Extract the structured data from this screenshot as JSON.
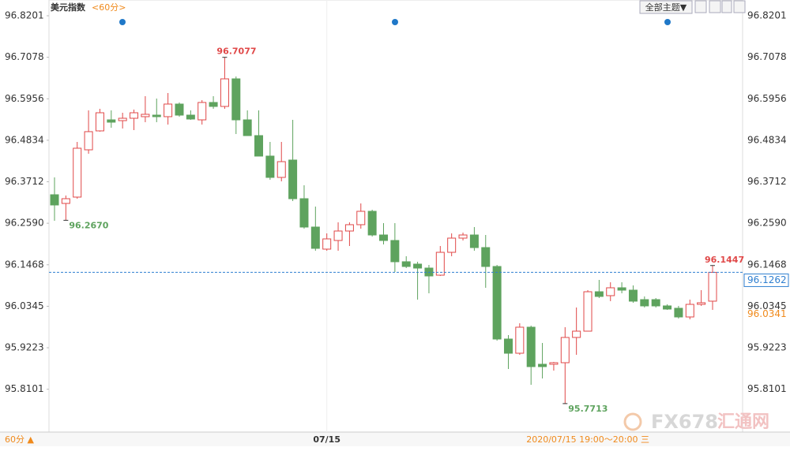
{
  "chart_data": {
    "type": "candlestick",
    "title": "美元指数",
    "period_label": "<60分>",
    "toolbar_button": "全部主题▼",
    "period_button": "60分 ▲",
    "time_range": "2020/07/15 19:00～20:00 三",
    "watermark": [
      "FX678",
      "汇通网"
    ],
    "categories": [
      null,
      null,
      null,
      null,
      null,
      null,
      null,
      null,
      null,
      null,
      null,
      null,
      null,
      null,
      null,
      null,
      null,
      null,
      null,
      null,
      null,
      null,
      null,
      null,
      "07/15",
      null,
      null,
      null,
      null,
      null,
      null,
      null,
      null,
      null,
      null,
      null,
      null,
      null,
      null,
      null,
      null,
      null,
      null,
      null,
      null,
      null,
      null,
      null,
      null,
      null,
      null,
      null,
      null,
      null,
      null,
      null,
      null,
      null,
      null
    ],
    "open": [
      96.3361,
      96.3126,
      96.3297,
      96.4576,
      96.5088,
      96.5386,
      96.5365,
      96.5429,
      96.5472,
      96.5514,
      96.5472,
      96.5813,
      96.5514,
      96.5386,
      96.5856,
      96.5749,
      96.6495,
      96.5386,
      96.496,
      96.4406,
      96.383,
      96.4299,
      96.3254,
      96.2487,
      96.189,
      96.2124,
      96.238,
      96.2551,
      96.2913,
      96.2273,
      96.2124,
      96.1549,
      96.1485,
      96.1378,
      96.1186,
      96.1804,
      96.2188,
      96.2273,
      96.1932,
      96.1421,
      95.9459,
      95.9075,
      95.9779,
      95.8777,
      95.8777,
      95.8819,
      95.9502,
      95.9672,
      96.0738,
      96.0632,
      96.0845,
      96.0781,
      96.0525,
      96.0525,
      96.0355,
      96.0291,
      96.0056,
      96.0397,
      96.0483
    ],
    "high": [
      96.383,
      96.334,
      96.4789,
      96.5642,
      96.5685,
      96.5642,
      96.5578,
      96.5664,
      96.6026,
      96.5962,
      96.6111,
      96.5856,
      96.5642,
      96.592,
      96.6026,
      96.7077,
      96.6559,
      96.5642,
      96.5642,
      96.4789,
      96.4789,
      96.5386,
      96.3617,
      96.3041,
      96.2316,
      96.2615,
      96.2615,
      96.3126,
      96.2956,
      96.2593,
      96.2593,
      96.1698,
      96.1549,
      96.1463,
      96.1975,
      96.2316,
      96.2337,
      96.2487,
      96.2273,
      96.1463,
      95.9566,
      95.9885,
      95.9821,
      95.9353,
      95.884,
      95.9779,
      96.0312,
      96.0781,
      96.1058,
      96.0994,
      96.0994,
      96.0909,
      96.0611,
      96.0568,
      96.0397,
      96.0355,
      96.0525,
      96.0781,
      96.1447
    ],
    "low": [
      96.2657,
      96.267,
      96.3254,
      96.447,
      96.5067,
      96.5173,
      96.5152,
      96.5109,
      96.5323,
      96.5323,
      96.5259,
      96.5472,
      96.5386,
      96.5259,
      96.5685,
      96.5685,
      96.5003,
      96.496,
      96.4406,
      96.3766,
      96.3723,
      96.319,
      96.2444,
      96.1847,
      96.1847,
      96.1847,
      96.1975,
      96.2444,
      96.2231,
      96.2018,
      96.1271,
      96.1378,
      96.0525,
      96.0696,
      96.1165,
      96.1698,
      96.2124,
      96.1847,
      96.0845,
      95.9416,
      95.8649,
      95.9033,
      95.8222,
      95.8393,
      95.8606,
      95.7713,
      95.9033,
      95.9672,
      96.0568,
      96.0483,
      96.0696,
      96.044,
      96.0312,
      96.0312,
      96.0248,
      96.0013,
      95.9992,
      96.0355,
      96.0248
    ],
    "close": [
      96.3084,
      96.3254,
      96.4619,
      96.5067,
      96.5578,
      96.5323,
      96.5429,
      96.5578,
      96.5536,
      96.5472,
      96.5813,
      96.5514,
      96.5408,
      96.5856,
      96.5749,
      96.6495,
      96.5386,
      96.496,
      96.4406,
      96.383,
      96.4256,
      96.3254,
      96.2487,
      96.1911,
      96.2167,
      96.238,
      96.2551,
      96.2913,
      96.2273,
      96.2124,
      96.1549,
      96.1421,
      96.1378,
      96.1165,
      96.1804,
      96.2188,
      96.2273,
      96.1932,
      96.1421,
      95.9459,
      95.9075,
      95.9779,
      95.8713,
      95.8713,
      95.8819,
      95.9502,
      95.9672,
      96.0738,
      96.0611,
      96.0845,
      96.0781,
      96.0483,
      96.0355,
      96.0355,
      96.0269,
      96.0056,
      96.0397,
      96.044,
      96.1262
    ],
    "up_color": "#e04848",
    "down_color": "#5ea35e",
    "annotations": [
      {
        "index": 15,
        "value": 96.7077,
        "color": "#e04848"
      },
      {
        "index": 1,
        "value": 96.267,
        "label": "96.2670",
        "color": "#5ea35e"
      },
      {
        "index": 45,
        "value": 95.7713,
        "color": "#5ea35e"
      },
      {
        "index": 58,
        "value": 96.1447,
        "color": "#e04848"
      }
    ],
    "last_price": {
      "value": 96.1262,
      "color": "#2f7fd0"
    },
    "ref_price": {
      "value": 96.0341,
      "color": "#f08a1c"
    },
    "ylim": [
      95.6943,
      96.8627
    ],
    "yticks": [
      96.8201,
      96.7078,
      96.5956,
      96.4834,
      96.3712,
      {
        "value": 96.259,
        "label": "96.2590"
      },
      96.1468,
      96.0345,
      95.9223,
      95.8101
    ]
  }
}
